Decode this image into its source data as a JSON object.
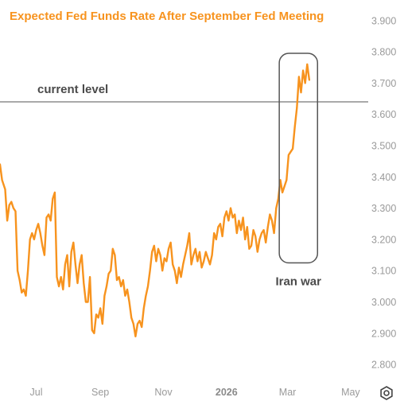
{
  "chart_data": {
    "type": "line",
    "title": "Expected Fed Funds Rate After September Fed Meeting",
    "y_ticks": [
      "3.900",
      "3.800",
      "3.700",
      "3.600",
      "3.500",
      "3.400",
      "3.300",
      "3.200",
      "3.100",
      "3.000",
      "2.900",
      "2.800"
    ],
    "x_ticks": [
      {
        "label": "Jul",
        "date": "2025-07-01",
        "bold": false
      },
      {
        "label": "Sep",
        "date": "2025-09-01",
        "bold": false
      },
      {
        "label": "Nov",
        "date": "2025-11-01",
        "bold": false
      },
      {
        "label": "2026",
        "date": "2026-01-01",
        "bold": true
      },
      {
        "label": "Mar",
        "date": "2026-03-01",
        "bold": false
      },
      {
        "label": "May",
        "date": "2026-05-01",
        "bold": false
      }
    ],
    "x_range": [
      "2025-05-27",
      "2026-05-18"
    ],
    "ylim": [
      2.78,
      3.935
    ],
    "grid": false,
    "series": [
      {
        "color": "#f7931e",
        "points": [
          [
            "2025-05-27",
            3.44
          ],
          [
            "2025-05-29",
            3.39
          ],
          [
            "2025-06-01",
            3.36
          ],
          [
            "2025-06-03",
            3.26
          ],
          [
            "2025-06-05",
            3.31
          ],
          [
            "2025-06-07",
            3.32
          ],
          [
            "2025-06-09",
            3.3
          ],
          [
            "2025-06-11",
            3.29
          ],
          [
            "2025-06-13",
            3.1
          ],
          [
            "2025-06-15",
            3.07
          ],
          [
            "2025-06-17",
            3.03
          ],
          [
            "2025-06-19",
            3.04
          ],
          [
            "2025-06-21",
            3.02
          ],
          [
            "2025-06-23",
            3.1
          ],
          [
            "2025-06-25",
            3.2
          ],
          [
            "2025-06-27",
            3.22
          ],
          [
            "2025-06-29",
            3.2
          ],
          [
            "2025-07-01",
            3.23
          ],
          [
            "2025-07-03",
            3.25
          ],
          [
            "2025-07-05",
            3.22
          ],
          [
            "2025-07-07",
            3.18
          ],
          [
            "2025-07-09",
            3.15
          ],
          [
            "2025-07-11",
            3.27
          ],
          [
            "2025-07-13",
            3.28
          ],
          [
            "2025-07-15",
            3.26
          ],
          [
            "2025-07-17",
            3.33
          ],
          [
            "2025-07-19",
            3.35
          ],
          [
            "2025-07-21",
            3.08
          ],
          [
            "2025-07-23",
            3.05
          ],
          [
            "2025-07-25",
            3.08
          ],
          [
            "2025-07-27",
            3.04
          ],
          [
            "2025-07-29",
            3.12
          ],
          [
            "2025-07-31",
            3.15
          ],
          [
            "2025-08-02",
            3.05
          ],
          [
            "2025-08-04",
            3.16
          ],
          [
            "2025-08-06",
            3.19
          ],
          [
            "2025-08-08",
            3.12
          ],
          [
            "2025-08-10",
            3.06
          ],
          [
            "2025-08-12",
            3.12
          ],
          [
            "2025-08-14",
            3.15
          ],
          [
            "2025-08-16",
            3.06
          ],
          [
            "2025-08-18",
            3.0
          ],
          [
            "2025-08-20",
            3.0
          ],
          [
            "2025-08-22",
            3.08
          ],
          [
            "2025-08-24",
            2.91
          ],
          [
            "2025-08-26",
            2.9
          ],
          [
            "2025-08-28",
            2.96
          ],
          [
            "2025-08-30",
            2.95
          ],
          [
            "2025-09-01",
            2.98
          ],
          [
            "2025-09-03",
            2.93
          ],
          [
            "2025-09-05",
            3.02
          ],
          [
            "2025-09-07",
            3.05
          ],
          [
            "2025-09-09",
            3.09
          ],
          [
            "2025-09-11",
            3.1
          ],
          [
            "2025-09-13",
            3.17
          ],
          [
            "2025-09-15",
            3.15
          ],
          [
            "2025-09-17",
            3.07
          ],
          [
            "2025-09-19",
            3.08
          ],
          [
            "2025-09-21",
            3.05
          ],
          [
            "2025-09-23",
            3.07
          ],
          [
            "2025-09-25",
            3.02
          ],
          [
            "2025-09-27",
            3.04
          ],
          [
            "2025-09-29",
            3.0
          ],
          [
            "2025-10-01",
            2.95
          ],
          [
            "2025-10-03",
            2.93
          ],
          [
            "2025-10-05",
            2.89
          ],
          [
            "2025-10-07",
            2.93
          ],
          [
            "2025-10-09",
            2.94
          ],
          [
            "2025-10-11",
            2.92
          ],
          [
            "2025-10-13",
            2.98
          ],
          [
            "2025-10-15",
            3.02
          ],
          [
            "2025-10-17",
            3.05
          ],
          [
            "2025-10-19",
            3.1
          ],
          [
            "2025-10-21",
            3.16
          ],
          [
            "2025-10-23",
            3.18
          ],
          [
            "2025-10-25",
            3.13
          ],
          [
            "2025-10-27",
            3.17
          ],
          [
            "2025-10-29",
            3.15
          ],
          [
            "2025-10-31",
            3.1
          ],
          [
            "2025-11-02",
            3.14
          ],
          [
            "2025-11-04",
            3.13
          ],
          [
            "2025-11-06",
            3.17
          ],
          [
            "2025-11-08",
            3.19
          ],
          [
            "2025-11-10",
            3.12
          ],
          [
            "2025-11-12",
            3.1
          ],
          [
            "2025-11-14",
            3.06
          ],
          [
            "2025-11-16",
            3.11
          ],
          [
            "2025-11-18",
            3.08
          ],
          [
            "2025-11-20",
            3.12
          ],
          [
            "2025-11-22",
            3.15
          ],
          [
            "2025-11-24",
            3.18
          ],
          [
            "2025-11-26",
            3.22
          ],
          [
            "2025-11-28",
            3.12
          ],
          [
            "2025-11-30",
            3.15
          ],
          [
            "2025-12-02",
            3.17
          ],
          [
            "2025-12-04",
            3.13
          ],
          [
            "2025-12-06",
            3.16
          ],
          [
            "2025-12-08",
            3.11
          ],
          [
            "2025-12-10",
            3.13
          ],
          [
            "2025-12-12",
            3.16
          ],
          [
            "2025-12-14",
            3.14
          ],
          [
            "2025-12-16",
            3.12
          ],
          [
            "2025-12-18",
            3.15
          ],
          [
            "2025-12-20",
            3.22
          ],
          [
            "2025-12-22",
            3.2
          ],
          [
            "2025-12-24",
            3.24
          ],
          [
            "2025-12-26",
            3.25
          ],
          [
            "2025-12-28",
            3.21
          ],
          [
            "2025-12-30",
            3.27
          ],
          [
            "2026-01-01",
            3.29
          ],
          [
            "2026-01-03",
            3.26
          ],
          [
            "2026-01-05",
            3.3
          ],
          [
            "2026-01-07",
            3.27
          ],
          [
            "2026-01-09",
            3.28
          ],
          [
            "2026-01-11",
            3.22
          ],
          [
            "2026-01-13",
            3.26
          ],
          [
            "2026-01-15",
            3.23
          ],
          [
            "2026-01-17",
            3.27
          ],
          [
            "2026-01-19",
            3.2
          ],
          [
            "2026-01-21",
            3.24
          ],
          [
            "2026-01-23",
            3.17
          ],
          [
            "2026-01-25",
            3.18
          ],
          [
            "2026-01-27",
            3.23
          ],
          [
            "2026-01-29",
            3.21
          ],
          [
            "2026-01-31",
            3.16
          ],
          [
            "2026-02-02",
            3.2
          ],
          [
            "2026-02-04",
            3.22
          ],
          [
            "2026-02-06",
            3.23
          ],
          [
            "2026-02-08",
            3.19
          ],
          [
            "2026-02-10",
            3.24
          ],
          [
            "2026-02-12",
            3.28
          ],
          [
            "2026-02-14",
            3.26
          ],
          [
            "2026-02-16",
            3.22
          ],
          [
            "2026-02-18",
            3.3
          ],
          [
            "2026-02-20",
            3.33
          ],
          [
            "2026-02-22",
            3.39
          ],
          [
            "2026-02-24",
            3.35
          ],
          [
            "2026-02-26",
            3.37
          ],
          [
            "2026-02-28",
            3.39
          ],
          [
            "2026-03-02",
            3.47
          ],
          [
            "2026-03-04",
            3.48
          ],
          [
            "2026-03-06",
            3.49
          ],
          [
            "2026-03-08",
            3.56
          ],
          [
            "2026-03-10",
            3.62
          ],
          [
            "2026-03-12",
            3.72
          ],
          [
            "2026-03-14",
            3.67
          ],
          [
            "2026-03-16",
            3.74
          ],
          [
            "2026-03-18",
            3.7
          ],
          [
            "2026-03-20",
            3.76
          ],
          [
            "2026-03-22",
            3.71
          ]
        ]
      }
    ],
    "reference_line": {
      "label": "current level",
      "value": 3.64
    },
    "highlight": {
      "label": "Iran war",
      "from": "2026-02-21",
      "to": "2026-03-30",
      "y_from": 3.125,
      "y_to": 3.795
    }
  },
  "icons": {
    "settings": "settings-icon"
  }
}
